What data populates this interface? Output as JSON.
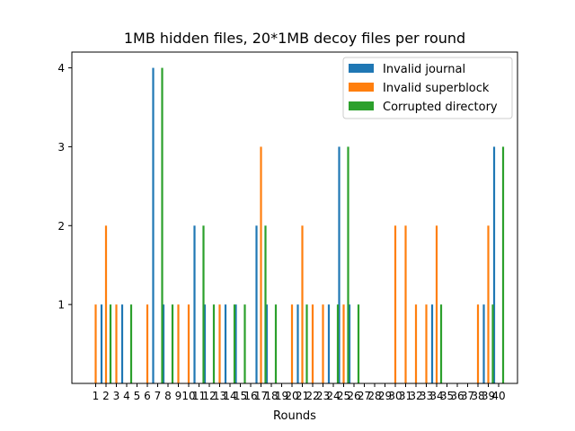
{
  "chart_data": {
    "type": "bar",
    "title": "1MB hidden files, 20*1MB decoy files per round",
    "xlabel": "Rounds",
    "ylabel": "",
    "ylim": [
      0,
      4.2
    ],
    "yticks": [
      "1",
      "2",
      "3",
      "4"
    ],
    "categories": [
      "1",
      "2",
      "3",
      "4",
      "5",
      "6",
      "7",
      "8",
      "9",
      "10",
      "11",
      "12",
      "13",
      "14",
      "15",
      "16",
      "17",
      "18",
      "19",
      "20",
      "21",
      "22",
      "23",
      "24",
      "25",
      "26",
      "27",
      "28",
      "29",
      "30",
      "31",
      "32",
      "33",
      "34",
      "35",
      "36",
      "37",
      "38",
      "39",
      "40"
    ],
    "legend_position": "top-right",
    "series": [
      {
        "name": "Invalid journal",
        "color": "#1f77b4",
        "values": [
          0,
          1,
          0,
          1,
          0,
          0,
          4,
          1,
          0,
          0,
          2,
          1,
          0,
          1,
          1,
          0,
          2,
          1,
          0,
          0,
          1,
          0,
          0,
          1,
          3,
          1,
          0,
          0,
          0,
          0,
          0,
          0,
          0,
          1,
          0,
          0,
          0,
          0,
          1,
          3
        ]
      },
      {
        "name": "Invalid superblock",
        "color": "#ff7f0e",
        "values": [
          1,
          2,
          1,
          0,
          0,
          1,
          0,
          0,
          1,
          1,
          0,
          0,
          1,
          0,
          0,
          0,
          3,
          0,
          0,
          1,
          2,
          1,
          1,
          0,
          1,
          0,
          0,
          0,
          0,
          2,
          2,
          1,
          1,
          2,
          0,
          0,
          0,
          1,
          2,
          0
        ]
      },
      {
        "name": "Corrupted directory",
        "color": "#2ca02c",
        "values": [
          0,
          1,
          0,
          1,
          0,
          0,
          4,
          1,
          0,
          0,
          2,
          1,
          0,
          1,
          1,
          0,
          2,
          1,
          0,
          0,
          1,
          0,
          0,
          1,
          3,
          1,
          0,
          0,
          0,
          0,
          0,
          0,
          0,
          1,
          0,
          0,
          0,
          0,
          1,
          3
        ]
      }
    ]
  }
}
